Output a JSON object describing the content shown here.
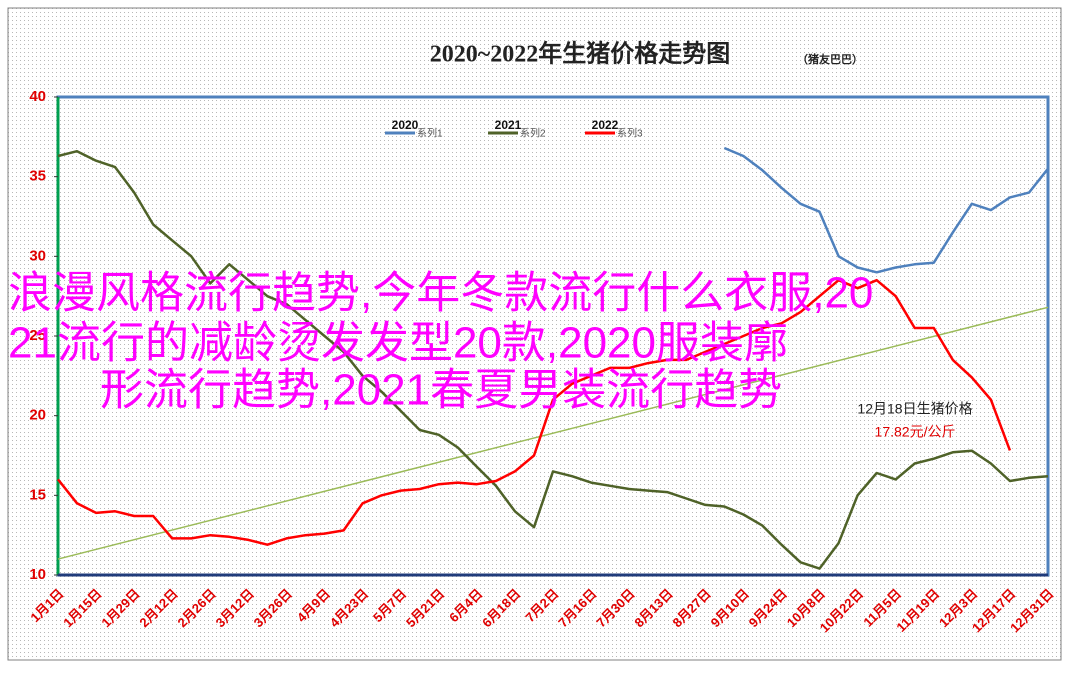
{
  "chart_data": {
    "type": "line",
    "title": "2020~2022年生猪价格走势图",
    "subtitle": "（猪友巴巴）",
    "categories": [
      "1月1日",
      null,
      "1月15日",
      null,
      "1月29日",
      null,
      "2月12日",
      null,
      "2月26日",
      null,
      "3月12日",
      null,
      "3月26日",
      null,
      "4月9日",
      null,
      "4月23日",
      null,
      "5月7日",
      null,
      "5月21日",
      null,
      "6月4日",
      null,
      "6月18日",
      null,
      "7月2日",
      null,
      "7月16日",
      null,
      "7月30日",
      null,
      "8月13日",
      null,
      "8月27日",
      null,
      "9月10日",
      null,
      "9月24日",
      null,
      "10月8日",
      null,
      "10月22日",
      null,
      "11月5日",
      null,
      "11月19日",
      null,
      "12月3日",
      null,
      "12月17日",
      null,
      "12月31日"
    ],
    "series": [
      {
        "name": "系列1",
        "label": "2020",
        "color": "#4f81bd",
        "values": [
          null,
          null,
          null,
          null,
          null,
          null,
          null,
          null,
          null,
          null,
          null,
          null,
          null,
          null,
          null,
          null,
          null,
          null,
          null,
          null,
          null,
          null,
          null,
          null,
          null,
          null,
          null,
          null,
          null,
          null,
          null,
          null,
          null,
          null,
          null,
          36.8,
          36.3,
          35.4,
          34.3,
          33.3,
          32.8,
          30.0,
          29.3,
          29.0,
          29.3,
          29.5,
          29.6,
          31.5,
          33.3,
          32.9,
          33.7,
          34.0,
          35.5
        ]
      },
      {
        "name": "系列2",
        "label": "2021",
        "color": "#4f6228",
        "values": [
          36.3,
          36.6,
          36.0,
          35.6,
          34.0,
          32.0,
          31.0,
          30.0,
          28.3,
          29.5,
          28.5,
          27.5,
          27.0,
          26.0,
          25.0,
          24.0,
          22.5,
          21.5,
          20.3,
          19.1,
          18.8,
          18.0,
          16.8,
          15.6,
          14.0,
          13.0,
          16.5,
          16.2,
          15.8,
          15.6,
          15.4,
          15.3,
          15.2,
          14.8,
          14.4,
          14.3,
          13.8,
          13.1,
          11.9,
          10.8,
          10.4,
          12.0,
          15.0,
          16.4,
          16.0,
          17.0,
          17.3,
          17.7,
          17.8,
          17.0,
          15.9,
          16.1,
          16.2
        ]
      },
      {
        "name": "系列3",
        "label": "2022",
        "color": "#ff0000",
        "values": [
          16.0,
          14.5,
          13.9,
          14.0,
          13.7,
          13.7,
          12.3,
          12.3,
          12.5,
          12.4,
          12.2,
          11.9,
          12.3,
          12.5,
          12.6,
          12.8,
          14.5,
          15.0,
          15.3,
          15.4,
          15.7,
          15.8,
          15.7,
          15.9,
          16.5,
          17.5,
          21.0,
          22.0,
          22.5,
          23.0,
          23.0,
          23.3,
          23.5,
          23.5,
          24.0,
          24.5,
          25.0,
          25.5,
          25.8,
          26.5,
          27.5,
          28.5,
          28.0,
          28.5,
          27.5,
          25.5,
          25.5,
          23.5,
          22.4,
          21.0,
          17.82,
          null,
          null
        ]
      }
    ],
    "trendline": {
      "color": "#9bbb59",
      "values": [
        11.0,
        26.8
      ]
    },
    "ylim": [
      10,
      40
    ],
    "yticks": [
      10,
      15,
      20,
      25,
      30,
      35,
      40
    ],
    "annotation": {
      "title": "12月18日生猪价格",
      "text": "17.82元/公斤"
    }
  },
  "overlay_text": [
    "浪漫风格流行趋势,今年冬款流行什么衣服,20",
    "21流行的减龄烫发发型20款,2020服装廓",
    "形流行趋势,2021春夏男装流行趋势"
  ]
}
